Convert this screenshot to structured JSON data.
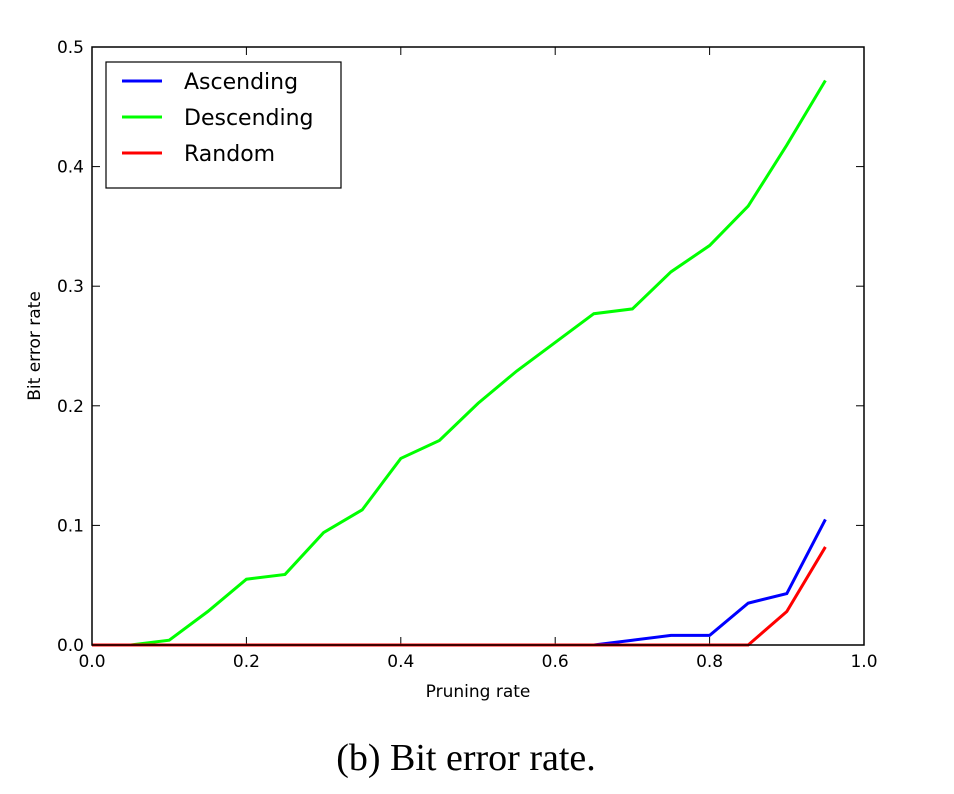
{
  "chart_data": {
    "type": "line",
    "caption": "(b) Bit error rate.",
    "xlabel": "Pruning rate",
    "ylabel": "Bit error rate",
    "x": [
      0,
      0.05,
      0.1,
      0.15,
      0.2,
      0.25,
      0.3,
      0.35,
      0.4,
      0.45,
      0.5,
      0.55,
      0.6,
      0.65,
      0.7,
      0.75,
      0.8,
      0.85,
      0.9,
      0.95
    ],
    "series": [
      {
        "name": "Ascending",
        "color": "#0000ff",
        "values": [
          0,
          0,
          0,
          0,
          0,
          0,
          0,
          0,
          0,
          0,
          0,
          0,
          0,
          0,
          0.004,
          0.008,
          0.008,
          0.035,
          0.043,
          0.105
        ]
      },
      {
        "name": "Descending",
        "color": "#00ff00",
        "values": [
          0,
          0,
          0.004,
          0.028,
          0.055,
          0.059,
          0.094,
          0.113,
          0.156,
          0.171,
          0.202,
          0.229,
          0.253,
          0.277,
          0.281,
          0.312,
          0.334,
          0.367,
          0.418,
          0.472
        ]
      },
      {
        "name": "Random",
        "color": "#ff0000",
        "values": [
          0,
          0,
          0,
          0,
          0,
          0,
          0,
          0,
          0,
          0,
          0,
          0,
          0,
          0,
          0,
          0,
          0,
          0,
          0.028,
          0.082
        ]
      }
    ],
    "xlim": [
      0,
      1
    ],
    "xticks": [
      {
        "value": 0,
        "label": "0.0"
      },
      0.2,
      0.4,
      0.6,
      0.8,
      {
        "value": 1,
        "label": "1.0"
      }
    ],
    "ylim": [
      0,
      0.5
    ],
    "yticks": [
      {
        "value": 0,
        "label": "0.0"
      },
      0.1,
      0.2,
      0.3,
      0.4,
      0.5
    ],
    "legend": "upper left"
  }
}
